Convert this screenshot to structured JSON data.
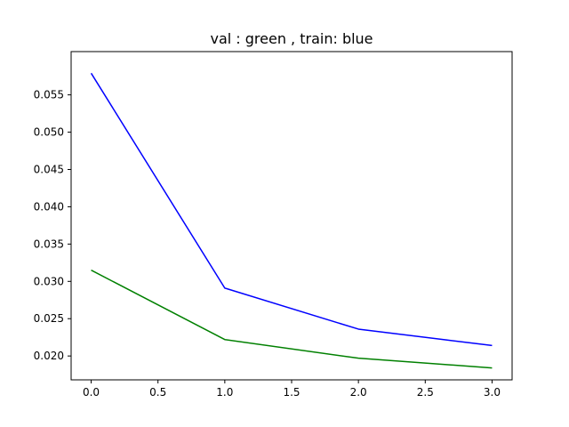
{
  "chart_data": {
    "type": "line",
    "title": "val : green , train: blue",
    "xlabel": "",
    "ylabel": "",
    "xlim": [
      -0.15,
      3.15
    ],
    "ylim": [
      0.0168,
      0.0608
    ],
    "xticks": [
      0.0,
      0.5,
      1.0,
      1.5,
      2.0,
      2.5,
      3.0
    ],
    "xtick_labels": [
      "0.0",
      "0.5",
      "1.0",
      "1.5",
      "2.0",
      "2.5",
      "3.0"
    ],
    "yticks": [
      0.02,
      0.025,
      0.03,
      0.035,
      0.04,
      0.045,
      0.05,
      0.055
    ],
    "ytick_labels": [
      "0.020",
      "0.025",
      "0.030",
      "0.035",
      "0.040",
      "0.045",
      "0.050",
      "0.055"
    ],
    "grid": false,
    "x": [
      0,
      1,
      2,
      3
    ],
    "series": [
      {
        "values": [
          0.0579,
          0.0291,
          0.0236,
          0.0214
        ],
        "color": "#0000ff"
      },
      {
        "values": [
          0.0315,
          0.0222,
          0.0197,
          0.0184
        ],
        "color": "#008000"
      }
    ]
  }
}
